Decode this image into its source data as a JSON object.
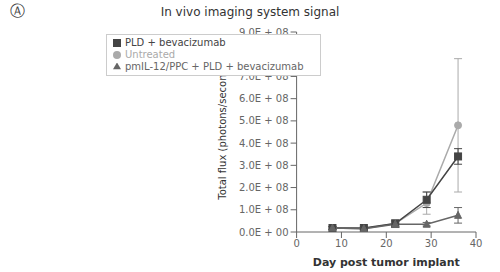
{
  "chart_data": {
    "type": "line",
    "title": "In vivo imaging system signal",
    "annotations": [
      "Ⓐ"
    ],
    "xlabel": "Day post tumor implant",
    "ylabel": "Total flux (photons/second)",
    "x": [
      8,
      15,
      22,
      29,
      36
    ],
    "xlim": [
      0,
      40
    ],
    "xticks": [
      0,
      10,
      20,
      30,
      40
    ],
    "ylim": [
      0,
      900000000
    ],
    "yticks": [
      {
        "value": 0,
        "label": "0.0E + 00"
      },
      {
        "value": 100000000,
        "label": "1.0E + 08"
      },
      {
        "value": 200000000,
        "label": "2.0E + 08"
      },
      {
        "value": 300000000,
        "label": "3.0E + 08"
      },
      {
        "value": 400000000,
        "label": "4.0E + 08"
      },
      {
        "value": 500000000,
        "label": "5.0E + 08"
      },
      {
        "value": 600000000,
        "label": "6.0E + 08"
      },
      {
        "value": 700000000,
        "label": "7.0E + 08"
      },
      {
        "value": 800000000,
        "label": "8.0E + 08"
      },
      {
        "value": 900000000,
        "label": "9.0E + 08"
      }
    ],
    "grid": false,
    "legend": "upper left",
    "series": [
      {
        "name": "Untreated",
        "color": "#aaaaaa",
        "marker": "circle",
        "values": [
          18000000,
          15000000,
          38000000,
          130000000,
          480000000
        ],
        "error": [
          7000000,
          5000000,
          18000000,
          50000000,
          300000000
        ]
      },
      {
        "name": "PLD + bevacizumab",
        "color": "#444444",
        "marker": "square",
        "values": [
          18000000,
          18000000,
          38000000,
          145000000,
          340000000
        ],
        "error": [
          6000000,
          5000000,
          15000000,
          35000000,
          35000000
        ]
      },
      {
        "name": "pmIL-12/PPC + PLD + bevacizumab",
        "color": "#666666",
        "marker": "triangle",
        "values": [
          18000000,
          15000000,
          35000000,
          35000000,
          75000000
        ],
        "error": [
          6000000,
          4000000,
          13000000,
          8000000,
          35000000
        ]
      }
    ]
  }
}
